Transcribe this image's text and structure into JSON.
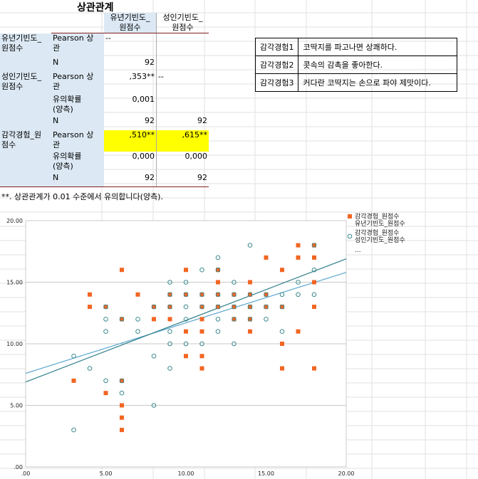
{
  "table": {
    "title": "상관관계",
    "col_headers": [
      "유년기빈도_\n원점수",
      "성인기빈도_\n원점수"
    ],
    "rows": [
      {
        "var": "유년기빈도_\n원점수",
        "cells": [
          {
            "label": "Pearson 상\n관",
            "v1": "--",
            "v2": ""
          },
          {
            "label": "N",
            "v1": "92",
            "v2": ""
          }
        ]
      },
      {
        "var": "성인기빈도_\n원점수",
        "cells": [
          {
            "label": "Pearson 상\n관",
            "v1": ",353**",
            "v2": "--"
          },
          {
            "label": "유의확률\n(양측)",
            "v1": "0,001",
            "v2": ""
          },
          {
            "label": "N",
            "v1": "92",
            "v2": "92"
          }
        ]
      },
      {
        "var": "감각경험_원\n점수",
        "cells": [
          {
            "label": "Pearson 상\n관",
            "v1": ",510**",
            "v2": ",615**"
          },
          {
            "label": "유의확률\n(양측)",
            "v1": "0,000",
            "v2": "0,000"
          },
          {
            "label": "N",
            "v1": "92",
            "v2": "92"
          }
        ]
      }
    ],
    "footnote": "**. 상관관계가 0.01 수준에서 유의합니다(양측)."
  },
  "descriptions": [
    {
      "item": "감각경험1",
      "text": "코딱지를 파고나면 상쾌하다."
    },
    {
      "item": "감각경험2",
      "text": "콧속의 감촉을 좋아한다."
    },
    {
      "item": "감각경험3",
      "text": "커다란 코딱지는 손으로 파야 제맛이다."
    }
  ],
  "chart_data": {
    "type": "scatter",
    "xlim": [
      0,
      20
    ],
    "ylim": [
      0,
      20
    ],
    "x_ticks": [
      ".00",
      "5.00",
      "10.00",
      "15.00",
      "20.00"
    ],
    "y_ticks": [
      ".00",
      "5.00",
      "10.00",
      "15.00",
      "20.00"
    ],
    "legend": {
      "placement": "top-right",
      "extra": "..."
    },
    "colors": {
      "series1": "#f26522",
      "series2": "#3a8a8f",
      "fit1": "#5aa6cf",
      "fit2": "#2f7f8a"
    },
    "series": [
      {
        "name": "감각경험_원점수\n유년기빈도_원점수",
        "marker": "square-filled",
        "fit": {
          "intercept": 7.6,
          "slope": 0.41
        },
        "points": [
          [
            3,
            7
          ],
          [
            4,
            13
          ],
          [
            4,
            14
          ],
          [
            5,
            6
          ],
          [
            5,
            13
          ],
          [
            6,
            3
          ],
          [
            6,
            4
          ],
          [
            6,
            5
          ],
          [
            6,
            7
          ],
          [
            6,
            12
          ],
          [
            6,
            16
          ],
          [
            7,
            14
          ],
          [
            8,
            12
          ],
          [
            8,
            13
          ],
          [
            9,
            12
          ],
          [
            9,
            13
          ],
          [
            9,
            14
          ],
          [
            10,
            9
          ],
          [
            10,
            11
          ],
          [
            10,
            14
          ],
          [
            10,
            16
          ],
          [
            11,
            8
          ],
          [
            11,
            9
          ],
          [
            11,
            11
          ],
          [
            11,
            12
          ],
          [
            11,
            13
          ],
          [
            11,
            14
          ],
          [
            12,
            13
          ],
          [
            12,
            14
          ],
          [
            12,
            15
          ],
          [
            12,
            16
          ],
          [
            13,
            12
          ],
          [
            13,
            13
          ],
          [
            13,
            14
          ],
          [
            14,
            11
          ],
          [
            14,
            12
          ],
          [
            14,
            13
          ],
          [
            14,
            14
          ],
          [
            14,
            15
          ],
          [
            15,
            13
          ],
          [
            15,
            14
          ],
          [
            15,
            17
          ],
          [
            16,
            8
          ],
          [
            16,
            10
          ],
          [
            16,
            13
          ],
          [
            16,
            16
          ],
          [
            17,
            11
          ],
          [
            17,
            17
          ],
          [
            17,
            18
          ],
          [
            18,
            8
          ],
          [
            18,
            13
          ],
          [
            18,
            15
          ],
          [
            18,
            17
          ],
          [
            18,
            18
          ]
        ]
      },
      {
        "name": "감각경험_원점수\n성인기빈도_원점수",
        "marker": "circle-open",
        "fit": {
          "intercept": 6.9,
          "slope": 0.5
        },
        "points": [
          [
            3,
            3
          ],
          [
            3,
            9
          ],
          [
            4,
            8
          ],
          [
            5,
            7
          ],
          [
            5,
            11
          ],
          [
            5,
            12
          ],
          [
            5,
            13
          ],
          [
            6,
            6
          ],
          [
            6,
            7
          ],
          [
            6,
            12
          ],
          [
            7,
            11
          ],
          [
            7,
            12
          ],
          [
            8,
            5
          ],
          [
            8,
            9
          ],
          [
            8,
            13
          ],
          [
            9,
            8
          ],
          [
            9,
            10
          ],
          [
            9,
            11
          ],
          [
            9,
            13
          ],
          [
            9,
            14
          ],
          [
            9,
            15
          ],
          [
            10,
            10
          ],
          [
            10,
            12
          ],
          [
            10,
            13
          ],
          [
            10,
            14
          ],
          [
            10,
            15
          ],
          [
            11,
            10
          ],
          [
            11,
            13
          ],
          [
            11,
            14
          ],
          [
            11,
            16
          ],
          [
            12,
            11
          ],
          [
            12,
            12
          ],
          [
            12,
            13
          ],
          [
            12,
            14
          ],
          [
            12,
            16
          ],
          [
            12,
            17
          ],
          [
            13,
            10
          ],
          [
            13,
            12
          ],
          [
            13,
            13
          ],
          [
            13,
            14
          ],
          [
            13,
            15
          ],
          [
            14,
            12
          ],
          [
            14,
            13
          ],
          [
            14,
            14
          ],
          [
            14,
            18
          ],
          [
            15,
            12
          ],
          [
            15,
            13
          ],
          [
            15,
            14
          ],
          [
            16,
            11
          ],
          [
            16,
            13
          ],
          [
            16,
            14
          ],
          [
            17,
            14
          ],
          [
            17,
            15
          ],
          [
            18,
            14
          ],
          [
            18,
            16
          ],
          [
            18,
            18
          ]
        ]
      }
    ]
  }
}
